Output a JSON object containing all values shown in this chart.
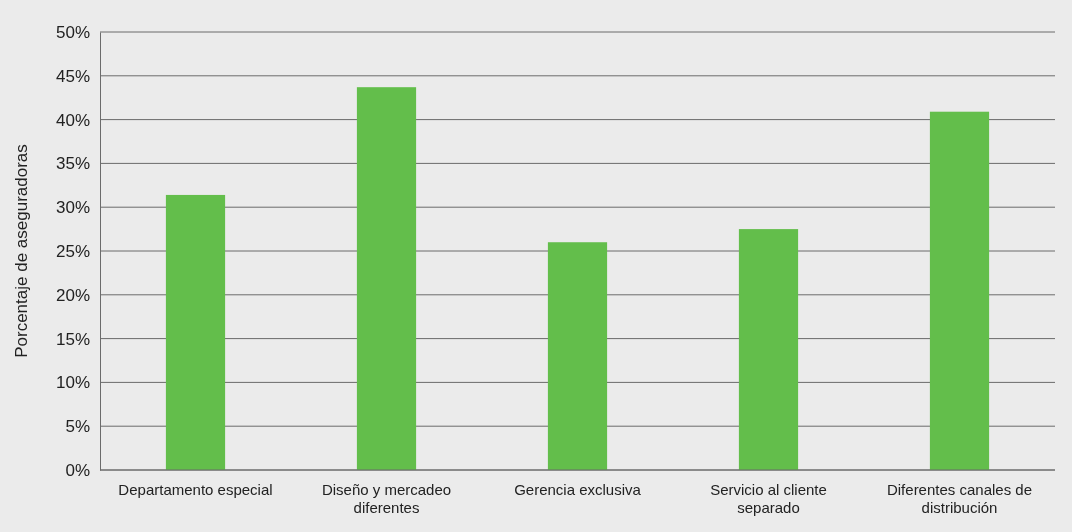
{
  "chart_data": {
    "type": "bar",
    "ylabel": "Porcentaje de aseguradoras",
    "categories": [
      "Departamento especial",
      "Diseño y mercadeo diferentes",
      "Gerencia exclusiva",
      "Servicio al cliente separado",
      "Diferentes canales de distribución"
    ],
    "values": [
      31.4,
      43.7,
      26.0,
      27.5,
      40.9
    ],
    "color": "#63be4b",
    "ylim": [
      0,
      50
    ],
    "yticks": [
      {
        "value": 0,
        "label": "0%"
      },
      {
        "value": 5,
        "label": "5%"
      },
      {
        "value": 10,
        "label": "10%"
      },
      {
        "value": 15,
        "label": "15%"
      },
      {
        "value": 20,
        "label": "20%"
      },
      {
        "value": 25,
        "label": "25%"
      },
      {
        "value": 30,
        "label": "30%"
      },
      {
        "value": 35,
        "label": "35%"
      },
      {
        "value": 40,
        "label": "40%"
      },
      {
        "value": 45,
        "label": "45%"
      },
      {
        "value": 50,
        "label": "50%"
      }
    ],
    "grid": "y"
  }
}
